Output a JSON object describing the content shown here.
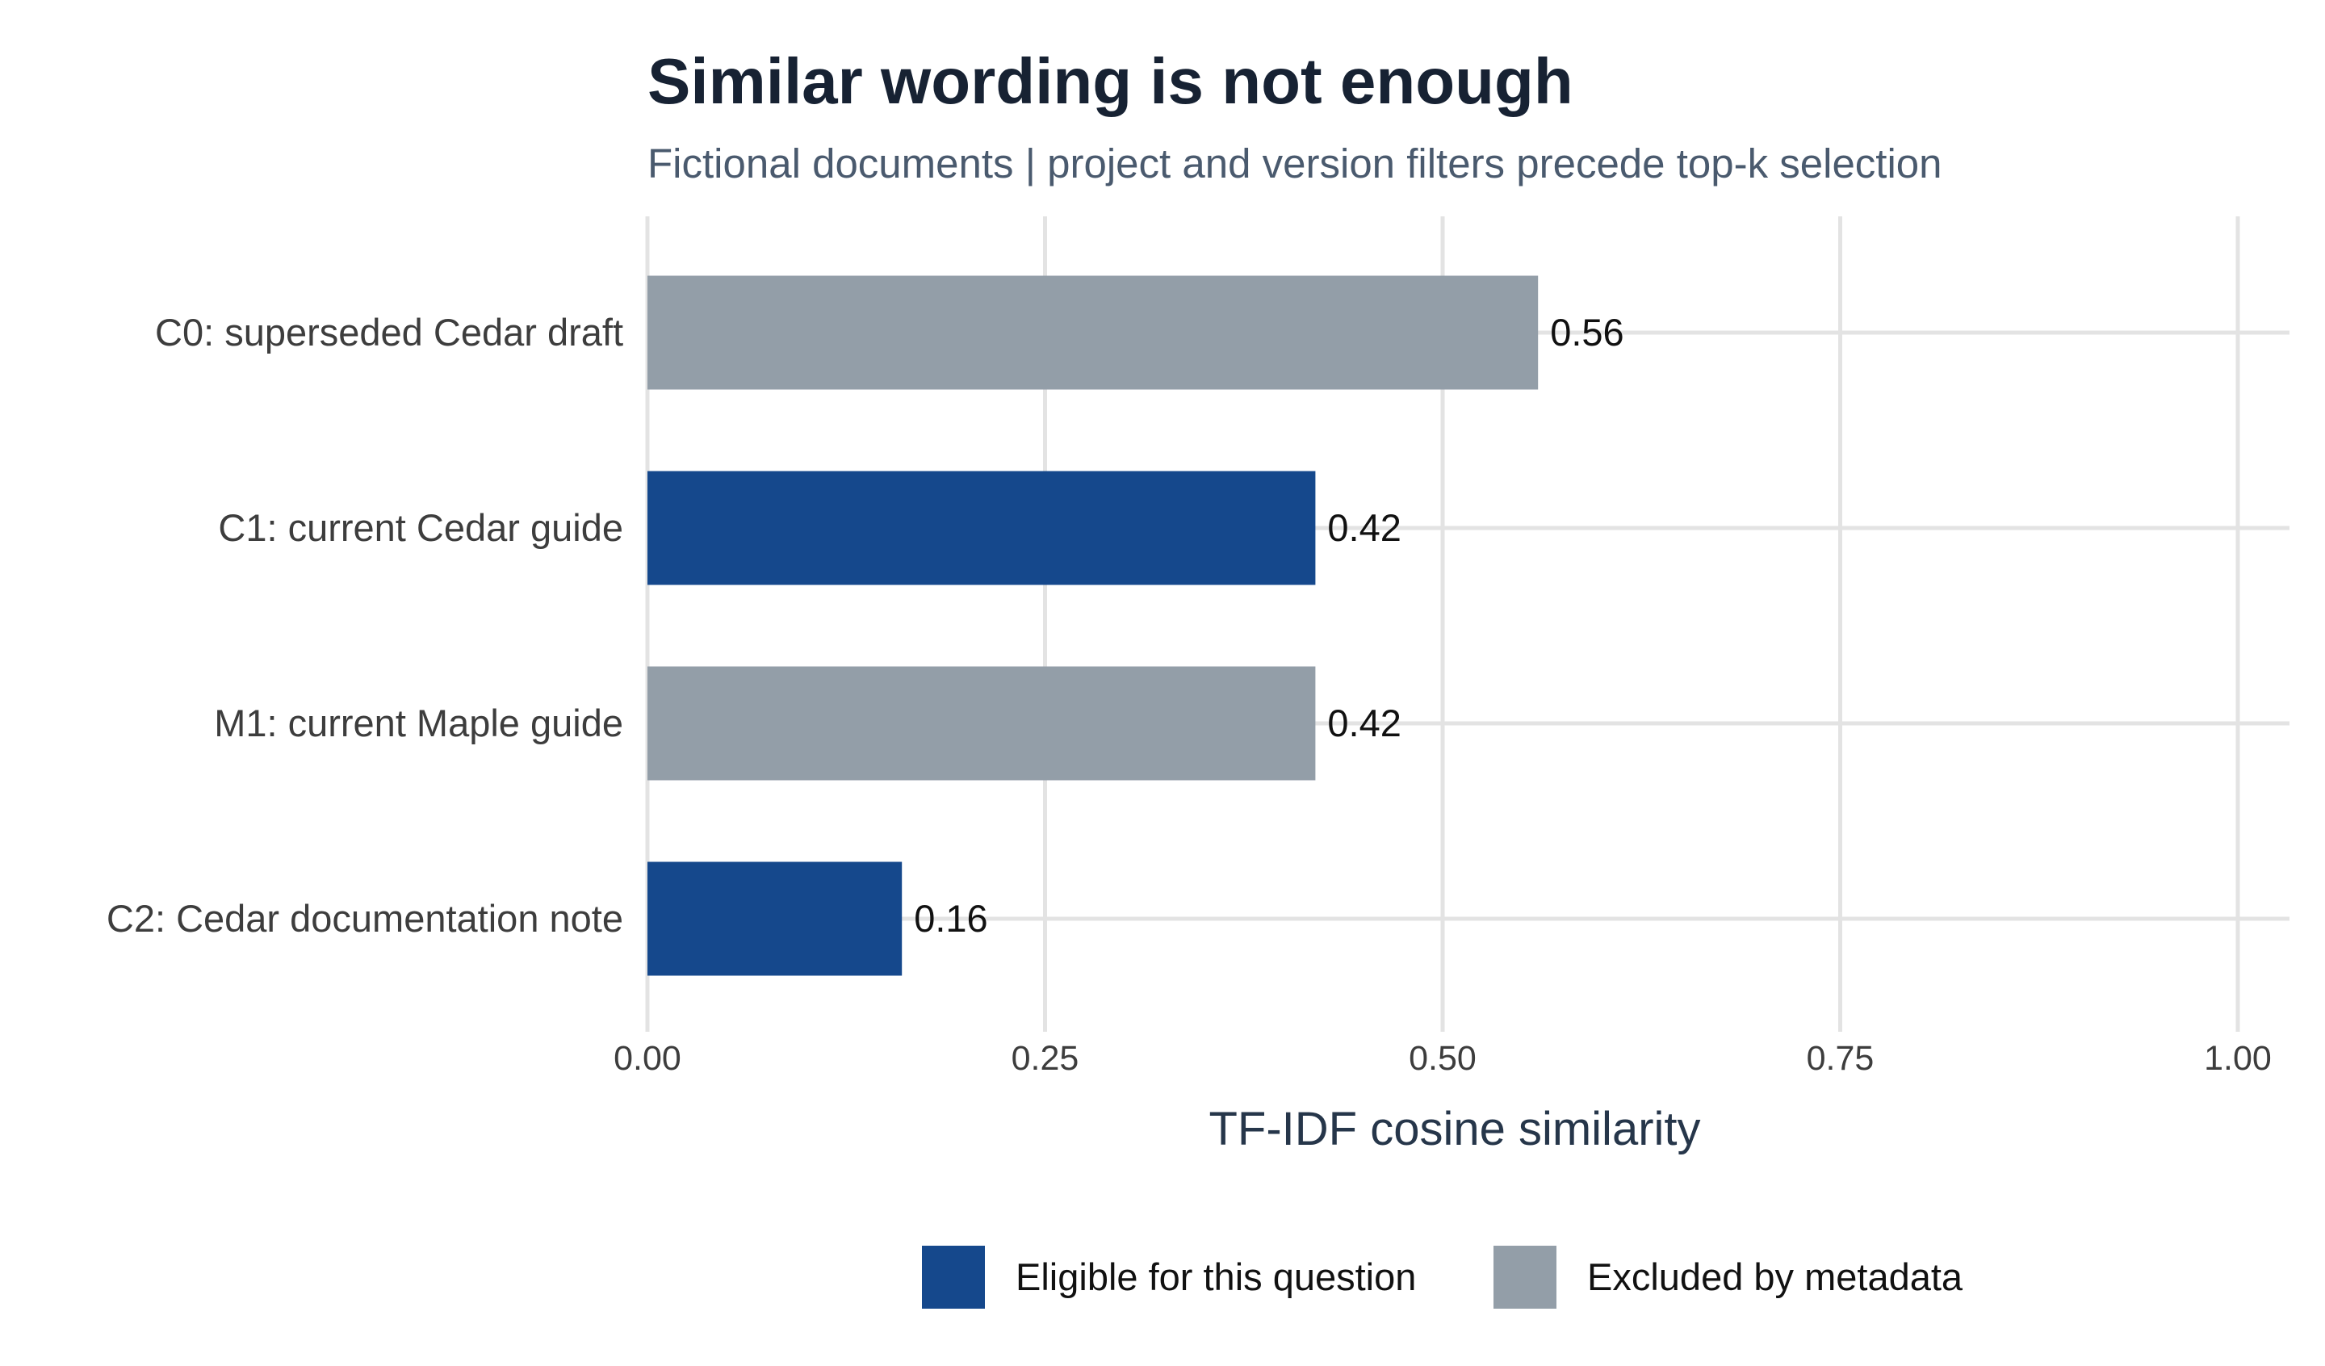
{
  "chart_data": {
    "type": "bar",
    "orientation": "horizontal",
    "title": "Similar wording is not enough",
    "subtitle": "Fictional documents | project and version filters precede top-k selection",
    "xlabel": "TF-IDF cosine similarity",
    "ylabel": "",
    "xlim": [
      0,
      1
    ],
    "x_ticks": [
      0,
      0.25,
      0.5,
      0.75,
      1
    ],
    "x_tick_labels": [
      "0.00",
      "0.25",
      "0.50",
      "0.75",
      "1.00"
    ],
    "grid": true,
    "legend_position": "bottom",
    "categories": [
      "C0: superseded Cedar draft",
      "C1: current Cedar guide",
      "M1: current Maple guide",
      "C2: Cedar documentation note"
    ],
    "values": [
      0.56,
      0.42,
      0.42,
      0.16
    ],
    "value_labels": [
      "0.56",
      "0.42",
      "0.42",
      "0.16"
    ],
    "groups": [
      "Excluded by metadata",
      "Eligible for this question",
      "Excluded by metadata",
      "Eligible for this question"
    ],
    "legend": [
      {
        "name": "Eligible for this question",
        "color": "#15488c"
      },
      {
        "name": "Excluded by metadata",
        "color": "#939ea8"
      }
    ],
    "colors": {
      "title": "#172233",
      "subtitle": "#4a5a6e",
      "axis_text": "#3d3d3d",
      "xlabel": "#26364a",
      "value_label": "#111111",
      "grid": "#e3e3e3"
    }
  }
}
